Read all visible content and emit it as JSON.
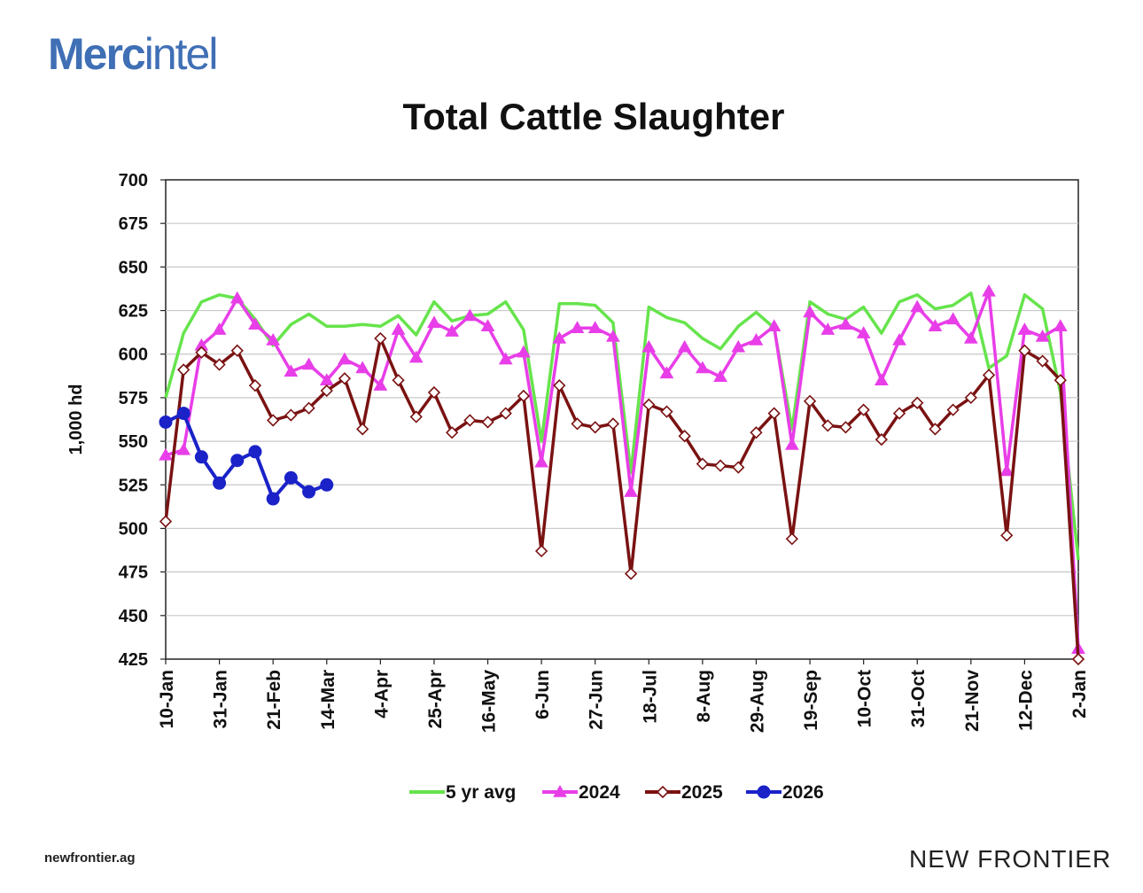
{
  "brand": {
    "logo_text_bold": "Merc",
    "logo_text_light": "intel"
  },
  "footer": {
    "website": "newfrontier.ag",
    "company": "NEW FRONTIER"
  },
  "colors": {
    "5 yr avg": "#66e44c",
    "2024": "#e83ee8",
    "2025": "#7a1212",
    "2026": "#1a22c8",
    "grid": "#c8c8c8",
    "axis": "#222222"
  },
  "chart_data": {
    "type": "line",
    "title": "Total Cattle Slaughter",
    "ylabel": "1,000 hd",
    "xlabel": "",
    "ylim": [
      425,
      700
    ],
    "yticks": [
      425,
      450,
      475,
      500,
      525,
      550,
      575,
      600,
      625,
      650,
      675,
      700
    ],
    "x_tick_labels": [
      "10-Jan",
      "31-Jan",
      "21-Feb",
      "14-Mar",
      "4-Apr",
      "25-Apr",
      "16-May",
      "6-Jun",
      "27-Jun",
      "18-Jul",
      "8-Aug",
      "29-Aug",
      "19-Sep",
      "10-Oct",
      "31-Oct",
      "21-Nov",
      "12-Dec",
      "2-Jan"
    ],
    "tick_every_weeks": 3,
    "num_weeks": 52,
    "legend_position": "bottom",
    "grid": true,
    "series": [
      {
        "name": "5 yr avg",
        "marker": "none",
        "values": [
          575,
          612,
          630,
          634,
          632,
          620,
          605,
          617,
          623,
          616,
          616,
          617,
          616,
          622,
          611,
          630,
          619,
          622,
          623,
          630,
          614,
          550,
          629,
          629,
          628,
          618,
          532,
          627,
          621,
          618,
          609,
          603,
          616,
          624,
          615,
          557,
          630,
          623,
          620,
          627,
          612,
          630,
          634,
          626,
          628,
          635,
          592,
          599,
          634,
          626,
          578,
          482
        ]
      },
      {
        "name": "2024",
        "marker": "triangle",
        "values": [
          542,
          545,
          605,
          614,
          632,
          617,
          608,
          590,
          594,
          585,
          597,
          592,
          582,
          614,
          598,
          618,
          613,
          622,
          616,
          597,
          601,
          538,
          609,
          615,
          615,
          610,
          521,
          604,
          589,
          604,
          592,
          587,
          604,
          608,
          616,
          548,
          624,
          614,
          617,
          612,
          585,
          608,
          627,
          616,
          620,
          609,
          636,
          533,
          614,
          610,
          616,
          431
        ]
      },
      {
        "name": "2025",
        "marker": "diamond",
        "values": [
          504,
          591,
          601,
          594,
          602,
          582,
          562,
          565,
          569,
          579,
          586,
          557,
          609,
          585,
          564,
          578,
          555,
          562,
          561,
          566,
          576,
          487,
          582,
          560,
          558,
          560,
          474,
          571,
          567,
          553,
          537,
          536,
          535,
          555,
          566,
          494,
          573,
          559,
          558,
          568,
          551,
          566,
          572,
          557,
          568,
          575,
          588,
          496,
          602,
          596,
          585,
          425
        ]
      },
      {
        "name": "2026",
        "marker": "circle",
        "values": [
          561,
          566,
          541,
          526,
          539,
          544,
          517,
          529,
          521,
          525
        ]
      }
    ]
  }
}
